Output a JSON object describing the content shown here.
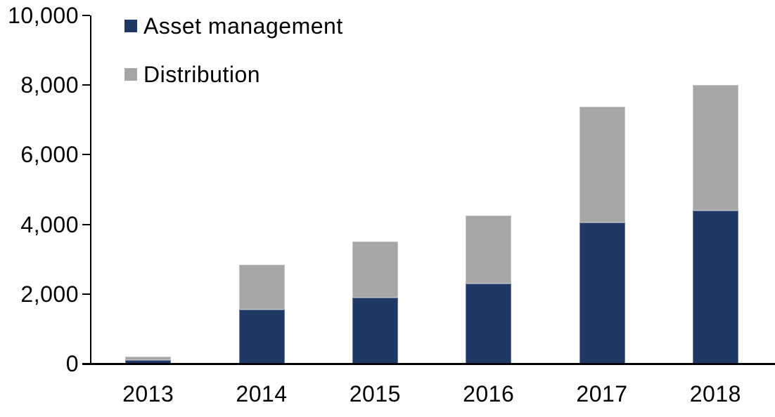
{
  "chart_data": {
    "type": "bar",
    "stacked": true,
    "categories": [
      "2013",
      "2014",
      "2015",
      "2016",
      "2017",
      "2018"
    ],
    "series": [
      {
        "name": "Asset management",
        "color": "#1f3864",
        "values": [
          100,
          1550,
          1900,
          2300,
          4050,
          4400
        ]
      },
      {
        "name": "Distribution",
        "color": "#a6a6a6",
        "values": [
          100,
          1300,
          1600,
          1950,
          3330,
          3600
        ]
      }
    ],
    "totals": [
      200,
      2850,
      3500,
      4250,
      7380,
      8000
    ],
    "ylim": [
      0,
      10000
    ],
    "ytick_values": [
      0,
      2000,
      4000,
      6000,
      8000,
      10000
    ],
    "ytick_labels": [
      "0",
      "2,000",
      "4,000",
      "6,000",
      "8,000",
      "10,000"
    ],
    "grid": false,
    "legend_position": "top-left-inside",
    "axis_color": "#000000"
  }
}
